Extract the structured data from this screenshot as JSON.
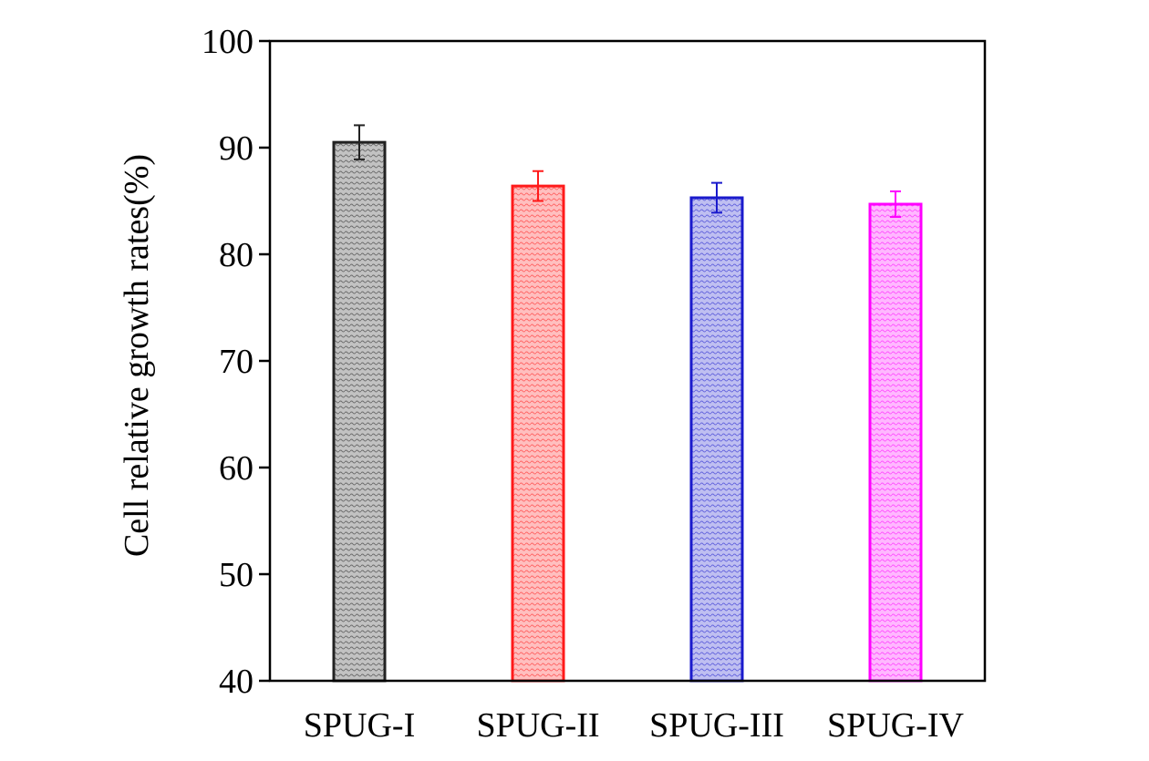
{
  "chart_data": {
    "type": "bar",
    "title": "",
    "xlabel": "",
    "ylabel": "Cell relative growth rates(%)",
    "ylim": [
      40,
      100
    ],
    "yticks": [
      40,
      50,
      60,
      70,
      80,
      90,
      100
    ],
    "categories": [
      "SPUG-I",
      "SPUG-II",
      "SPUG-III",
      "SPUG-IV"
    ],
    "values": [
      90.5,
      86.4,
      85.3,
      84.7
    ],
    "errors": [
      1.6,
      1.4,
      1.4,
      1.2
    ],
    "colors": [
      "#222222",
      "#ff1a1a",
      "#1a1acc",
      "#ff00ff"
    ],
    "fill_pattern": "hatched",
    "grid": false,
    "legend": "none"
  }
}
